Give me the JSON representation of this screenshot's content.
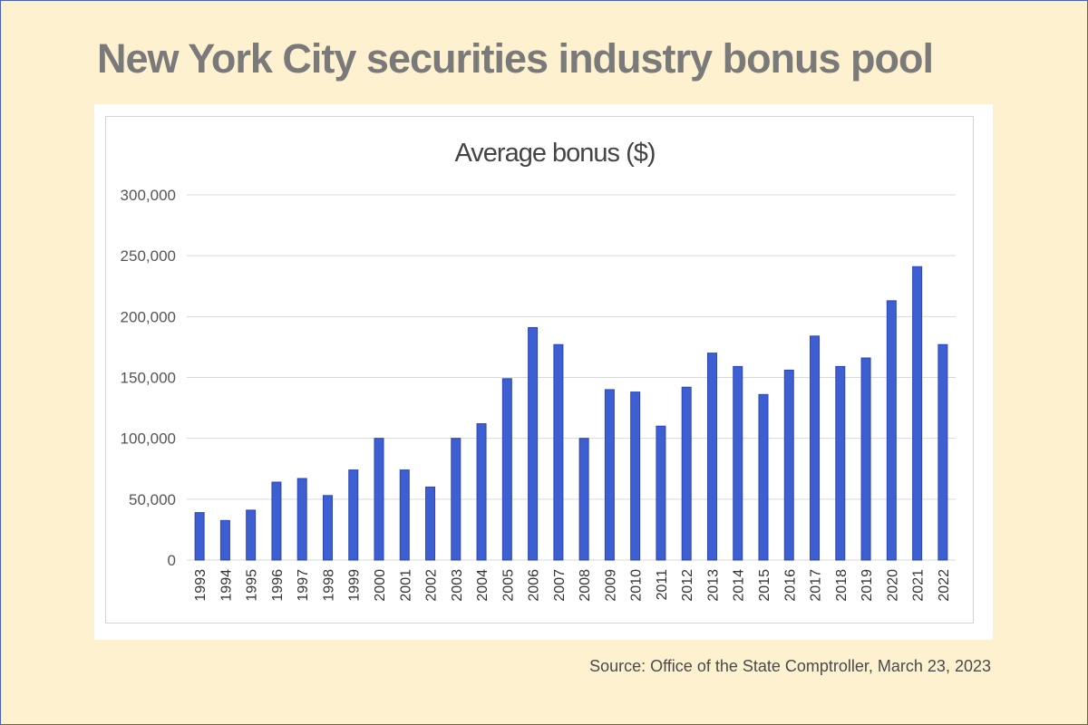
{
  "header": {
    "title": "New York City securities industry bonus pool"
  },
  "footer": {
    "source": "Source: Office of the State Comptroller, March 23, 2023"
  },
  "colors": {
    "background": "#fdf1cf",
    "bar_fill": "#3d5fd1",
    "bar_stroke": "#2a46b8",
    "title": "#7a7a7a",
    "grid": "#d9d9d9"
  },
  "chart_data": {
    "type": "bar",
    "title": "Average bonus ($)",
    "xlabel": "",
    "ylabel": "",
    "ylim": [
      0,
      300000
    ],
    "yticks": [
      0,
      50000,
      100000,
      150000,
      200000,
      250000,
      300000
    ],
    "ytick_labels": [
      "0",
      "50,000",
      "100,000",
      "150,000",
      "200,000",
      "250,000",
      "300,000"
    ],
    "grid": true,
    "legend": "none",
    "categories": [
      "1993",
      "1994",
      "1995",
      "1996",
      "1997",
      "1998",
      "1999",
      "2000",
      "2001",
      "2002",
      "2003",
      "2004",
      "2005",
      "2006",
      "2007",
      "2008",
      "2009",
      "2010",
      "2011",
      "2012",
      "2013",
      "2014",
      "2015",
      "2016",
      "2017",
      "2018",
      "2019",
      "2020",
      "2021",
      "2022"
    ],
    "values": [
      39000,
      32500,
      41000,
      64000,
      67000,
      53000,
      74000,
      100000,
      74000,
      60000,
      100000,
      112000,
      149000,
      191000,
      177000,
      100000,
      140000,
      138000,
      110000,
      142000,
      170000,
      159000,
      136000,
      156000,
      184000,
      159000,
      166000,
      213000,
      241000,
      177000
    ]
  }
}
